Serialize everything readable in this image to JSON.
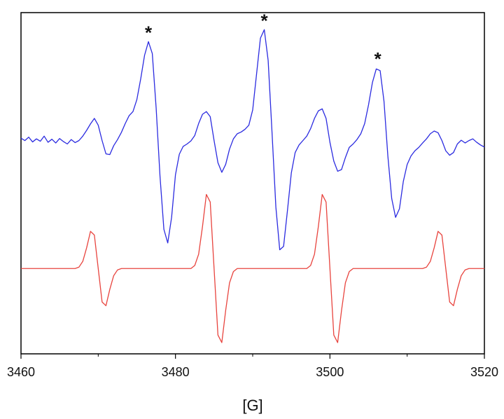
{
  "chart_data": {
    "type": "line",
    "xlabel": "[G]",
    "xlim": [
      3460,
      3520
    ],
    "xticks": [
      3460,
      3480,
      3500,
      3520
    ],
    "xticks_minor": [
      3470,
      3490,
      3510
    ],
    "ylim": [
      0,
      100
    ],
    "x": [
      3460,
      3460.5,
      3461,
      3461.5,
      3462,
      3462.5,
      3463,
      3463.5,
      3464,
      3464.5,
      3465,
      3465.5,
      3466,
      3466.5,
      3467,
      3467.5,
      3468,
      3468.5,
      3469,
      3469.5,
      3470,
      3470.5,
      3471,
      3471.5,
      3472,
      3472.5,
      3473,
      3473.5,
      3474,
      3474.5,
      3475,
      3475.5,
      3476,
      3476.5,
      3477,
      3477.5,
      3478,
      3478.5,
      3479,
      3479.5,
      3480,
      3480.5,
      3481,
      3481.5,
      3482,
      3482.5,
      3483,
      3483.5,
      3484,
      3484.5,
      3485,
      3485.5,
      3486,
      3486.5,
      3487,
      3487.5,
      3488,
      3488.5,
      3489,
      3489.5,
      3490,
      3490.5,
      3491,
      3491.5,
      3492,
      3492.5,
      3493,
      3493.5,
      3494,
      3494.5,
      3495,
      3495.5,
      3496,
      3496.5,
      3497,
      3497.5,
      3498,
      3498.5,
      3499,
      3499.5,
      3500,
      3500.5,
      3501,
      3501.5,
      3502,
      3502.5,
      3503,
      3503.5,
      3504,
      3504.5,
      3505,
      3505.5,
      3506,
      3506.5,
      3507,
      3507.5,
      3508,
      3508.5,
      3509,
      3509.5,
      3510,
      3510.5,
      3511,
      3511.5,
      3512,
      3512.5,
      3513,
      3513.5,
      3514,
      3514.5,
      3515,
      3515.5,
      3516,
      3516.5,
      3517,
      3517.5,
      3518,
      3518.5,
      3519,
      3519.5,
      3520
    ],
    "series": [
      {
        "color": "#2b2be0",
        "values": [
          63.2,
          62.5,
          63.5,
          62.1,
          63.0,
          62.3,
          63.8,
          62.0,
          62.9,
          61.8,
          63.1,
          62.2,
          61.5,
          62.8,
          61.9,
          62.5,
          63.8,
          65.5,
          67.4,
          69.0,
          67.0,
          62.5,
          58.6,
          58.4,
          61.0,
          62.8,
          64.9,
          67.5,
          69.8,
          71.0,
          74.5,
          80.6,
          87.5,
          91.5,
          88.0,
          72.0,
          52.0,
          36.5,
          32.5,
          40.0,
          52.5,
          58.5,
          60.8,
          61.5,
          62.4,
          64.0,
          67.5,
          70.2,
          71.0,
          69.5,
          62.5,
          56.0,
          53.2,
          55.5,
          60.0,
          63.0,
          64.5,
          65.0,
          65.8,
          67.0,
          71.5,
          82.0,
          92.5,
          95.0,
          86.0,
          65.0,
          43.0,
          30.5,
          31.5,
          42.0,
          53.0,
          59.0,
          61.2,
          62.5,
          63.8,
          66.0,
          69.0,
          71.2,
          71.8,
          69.0,
          62.0,
          56.5,
          53.5,
          54.0,
          57.5,
          60.5,
          61.5,
          62.8,
          64.5,
          67.5,
          73.0,
          79.5,
          83.5,
          83.0,
          74.0,
          58.0,
          45.5,
          40.0,
          42.5,
          50.5,
          55.5,
          58.0,
          59.5,
          60.5,
          61.8,
          63.0,
          64.5,
          65.3,
          64.8,
          62.5,
          59.5,
          58.2,
          59.0,
          61.5,
          62.6,
          61.8,
          62.5,
          63.0,
          62.0,
          61.2,
          60.6
        ]
      },
      {
        "color": "#e8443e",
        "values": [
          25,
          25,
          25,
          25,
          25,
          25,
          25,
          25,
          25,
          25,
          25,
          25,
          25,
          25,
          25,
          25.4,
          27.1,
          31.1,
          35.9,
          34.8,
          25,
          15.2,
          14.1,
          18.9,
          22.9,
          24.6,
          25,
          25,
          25,
          25,
          25,
          25,
          25,
          25,
          25,
          25,
          25,
          25,
          25,
          25,
          25,
          25,
          25,
          25,
          25,
          25.9,
          29.2,
          37.3,
          46.7,
          44.5,
          25,
          5.5,
          3.3,
          12.7,
          20.8,
          24.1,
          25,
          25,
          25,
          25,
          25,
          25,
          25,
          25,
          25,
          25,
          25,
          25,
          25,
          25,
          25,
          25,
          25,
          25,
          25,
          25.9,
          29.2,
          37.3,
          46.7,
          44.5,
          25,
          5.5,
          3.3,
          12.7,
          20.8,
          24.1,
          25,
          25,
          25,
          25,
          25,
          25,
          25,
          25,
          25,
          25,
          25,
          25,
          25,
          25,
          25,
          25,
          25,
          25,
          25,
          25.4,
          27.1,
          31.1,
          35.9,
          34.8,
          25,
          15.2,
          14.1,
          18.9,
          22.9,
          24.6,
          25,
          25,
          25,
          25,
          25
        ]
      }
    ],
    "annotations": [
      {
        "text": "*",
        "x": 3476.5,
        "y": 91.5
      },
      {
        "text": "*",
        "x": 3491.5,
        "y": 95.0
      },
      {
        "text": "*",
        "x": 3506.2,
        "y": 83.8
      }
    ]
  }
}
